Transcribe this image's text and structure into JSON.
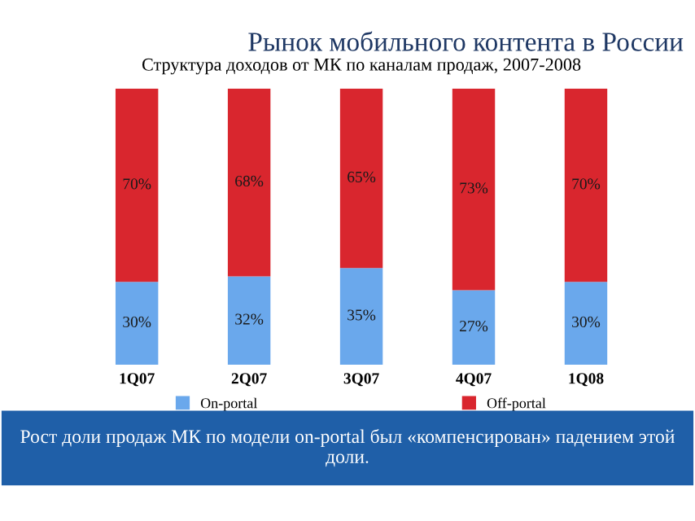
{
  "chart_data": {
    "type": "bar",
    "stacked": true,
    "legend": "bottom",
    "title": "Рынок мобильного контента в России",
    "subtitle": "Структура доходов от МК по каналам продаж, 2007-2008",
    "categories": [
      "1Q07",
      "2Q07",
      "3Q07",
      "4Q07",
      "1Q08"
    ],
    "series": [
      {
        "name": "On-portal",
        "color": "#6aa8ec",
        "values": [
          30,
          32,
          35,
          27,
          30
        ],
        "value_labels": [
          "30%",
          "32%",
          "35%",
          "27%",
          "30%"
        ]
      },
      {
        "name": "Off-portal",
        "color": "#d9262e",
        "values": [
          70,
          68,
          65,
          73,
          70
        ],
        "value_labels": [
          "70%",
          "68%",
          "65%",
          "73%",
          "70%"
        ]
      }
    ],
    "annotations": [
      "Рост доли продаж МК по модели on-portal был «компенсирован» падением этой доли."
    ]
  }
}
